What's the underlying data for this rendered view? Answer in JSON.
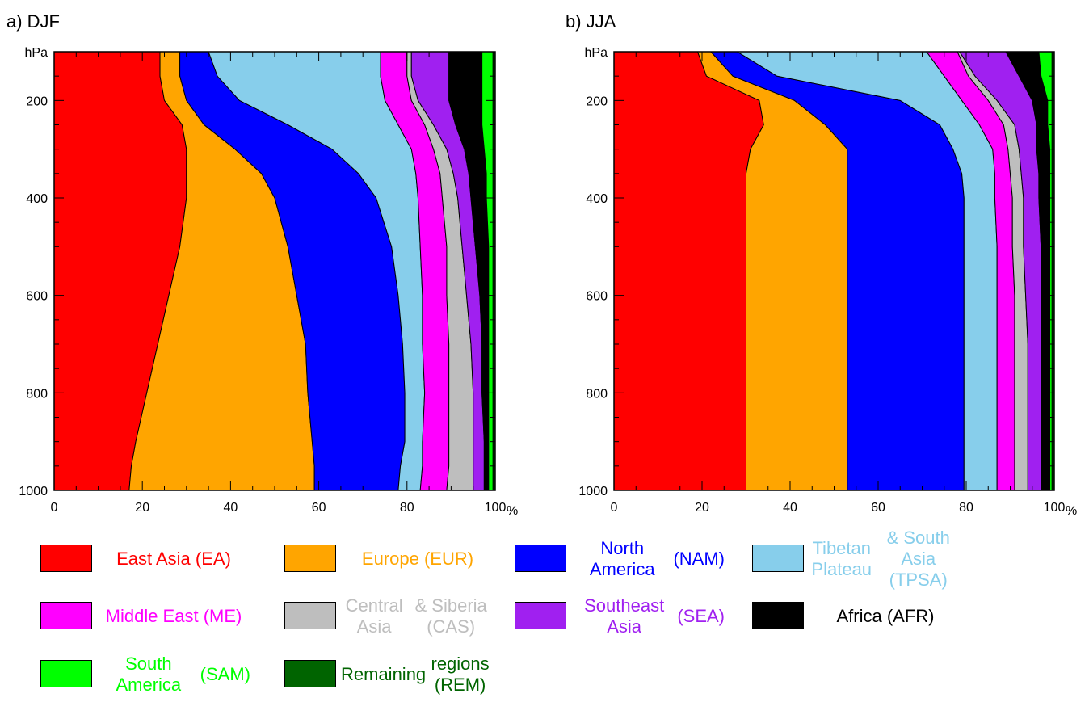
{
  "chart_data": [
    {
      "type": "area",
      "title": "a) DJF",
      "y_unit_label": "hPa",
      "x_unit_label": "%",
      "xlim": [
        0,
        100
      ],
      "ylim": [
        1000,
        100
      ],
      "x_ticks": [
        0,
        20,
        40,
        60,
        80,
        100
      ],
      "y_ticks": [
        200,
        400,
        600,
        800,
        1000
      ],
      "pressure": [
        100,
        150,
        200,
        250,
        300,
        350,
        400,
        500,
        600,
        700,
        800,
        900,
        950,
        1000
      ],
      "boundaries_cumulative_percent": [
        {
          "key": "EA",
          "values": [
            24,
            24,
            25,
            29,
            30,
            30,
            30,
            28.5,
            26,
            23.5,
            21,
            18.5,
            17.5,
            17
          ]
        },
        {
          "key": "EUR",
          "values": [
            28.5,
            28.5,
            30,
            34,
            41,
            47,
            50,
            53,
            55,
            57,
            57.5,
            58.5,
            59,
            59
          ]
        },
        {
          "key": "NAM",
          "values": [
            35,
            37,
            42,
            53,
            63,
            69,
            73,
            76.5,
            78,
            79,
            79.5,
            79.5,
            78.5,
            78
          ]
        },
        {
          "key": "TPSA",
          "values": [
            74,
            74,
            75,
            78,
            81,
            82,
            82.5,
            83,
            83.5,
            83.5,
            84,
            83.5,
            83.5,
            83
          ]
        },
        {
          "key": "ME",
          "values": [
            80,
            80,
            81,
            84,
            86,
            87.5,
            88,
            89,
            89,
            89.5,
            89.5,
            89.5,
            89.5,
            89
          ]
        },
        {
          "key": "CAS",
          "values": [
            81,
            81,
            82.5,
            86,
            89,
            90.5,
            91.5,
            92.5,
            93.5,
            94.5,
            95,
            95,
            95,
            95
          ]
        },
        {
          "key": "SEA",
          "values": [
            89.5,
            89.5,
            89.5,
            91,
            93,
            94,
            94.5,
            95.5,
            96.5,
            97,
            97,
            97.5,
            97.5,
            97.5
          ]
        },
        {
          "key": "AFR",
          "values": [
            97,
            97,
            97,
            97,
            97.5,
            98,
            98,
            98.5,
            98.5,
            98.5,
            98.5,
            98.5,
            98.5,
            98.5
          ]
        },
        {
          "key": "SAM",
          "values": [
            99.5,
            99.5,
            99.5,
            99.5,
            99.5,
            99.5,
            99.5,
            99.5,
            99.5,
            99.5,
            99.5,
            99.5,
            99.5,
            99.5
          ]
        },
        {
          "key": "REM",
          "values": [
            100,
            100,
            100,
            100,
            100,
            100,
            100,
            100,
            100,
            100,
            100,
            100,
            100,
            100
          ]
        }
      ]
    },
    {
      "type": "area",
      "title": "b) JJA",
      "y_unit_label": "hPa",
      "x_unit_label": "%",
      "xlim": [
        0,
        100
      ],
      "ylim": [
        1000,
        100
      ],
      "x_ticks": [
        0,
        20,
        40,
        60,
        80,
        100
      ],
      "y_ticks": [
        200,
        400,
        600,
        800,
        1000
      ],
      "pressure": [
        100,
        150,
        200,
        250,
        300,
        350,
        400,
        500,
        600,
        700,
        800,
        900,
        950,
        1000
      ],
      "boundaries_cumulative_percent": [
        {
          "key": "EA",
          "values": [
            19,
            21,
            33,
            34,
            31,
            30,
            30,
            30,
            30,
            30,
            30,
            30,
            30,
            30
          ]
        },
        {
          "key": "EUR",
          "values": [
            22,
            27,
            41,
            48,
            53,
            53,
            53,
            53,
            53,
            53,
            53,
            53,
            53,
            53
          ]
        },
        {
          "key": "NAM",
          "values": [
            28,
            37,
            65,
            74,
            77,
            79,
            79.5,
            79.5,
            79.5,
            79.5,
            79.5,
            79.5,
            79.5,
            79.5
          ]
        },
        {
          "key": "TPSA",
          "values": [
            71,
            75,
            79,
            83,
            86,
            86.5,
            86.5,
            87,
            87,
            87,
            87,
            87,
            87,
            87
          ]
        },
        {
          "key": "ME",
          "values": [
            78,
            80.5,
            85,
            88.5,
            89.5,
            90,
            90.5,
            90.5,
            91,
            91,
            91,
            91,
            91,
            91
          ]
        },
        {
          "key": "CAS",
          "values": [
            78.5,
            82,
            87,
            91,
            92,
            92.5,
            93,
            93,
            93.5,
            94,
            94,
            94,
            94,
            94
          ]
        },
        {
          "key": "SEA",
          "values": [
            89,
            92,
            95,
            96,
            96,
            96.5,
            96.5,
            97,
            97,
            97,
            97,
            97,
            97,
            97
          ]
        },
        {
          "key": "AFR",
          "values": [
            96.5,
            97,
            98.5,
            98.5,
            99,
            99,
            99,
            99,
            99,
            99,
            99,
            99,
            99,
            99
          ]
        },
        {
          "key": "SAM",
          "values": [
            99.5,
            99.5,
            99.5,
            99.5,
            99.5,
            99.5,
            99.5,
            99.5,
            99.5,
            99.5,
            99.5,
            99.5,
            99.5,
            99.5
          ]
        },
        {
          "key": "REM",
          "values": [
            100,
            100,
            100,
            100,
            100,
            100,
            100,
            100,
            100,
            100,
            100,
            100,
            100,
            100
          ]
        }
      ]
    }
  ],
  "legend": {
    "placement": "bottom",
    "items": [
      {
        "key": "EA",
        "lines": [
          "East Asia (EA)"
        ],
        "color": "#ff0000",
        "text_color": "#ff0000"
      },
      {
        "key": "EUR",
        "lines": [
          "Europe (EUR)"
        ],
        "color": "#ffa500",
        "text_color": "#ffa500"
      },
      {
        "key": "NAM",
        "lines": [
          "North America",
          "(NAM)"
        ],
        "color": "#0000ff",
        "text_color": "#0000ff"
      },
      {
        "key": "TPSA",
        "lines": [
          "Tibetan Plateau",
          "& South Asia (TPSA)"
        ],
        "color": "#87ceeb",
        "text_color": "#87ceeb"
      },
      {
        "key": "ME",
        "lines": [
          "Middle East (ME)"
        ],
        "color": "#ff00ff",
        "text_color": "#ff00ff"
      },
      {
        "key": "CAS",
        "lines": [
          "Central Asia",
          "& Siberia (CAS)"
        ],
        "color": "#bebebe",
        "text_color": "#bebebe"
      },
      {
        "key": "SEA",
        "lines": [
          "Southeast Asia",
          "(SEA)"
        ],
        "color": "#a020f0",
        "text_color": "#a020f0"
      },
      {
        "key": "AFR",
        "lines": [
          "Africa (AFR)"
        ],
        "color": "#000000",
        "text_color": "#000000"
      },
      {
        "key": "SAM",
        "lines": [
          "South America",
          "(SAM)"
        ],
        "color": "#00ff00",
        "text_color": "#00ff00"
      },
      {
        "key": "REM",
        "lines": [
          "Remaining",
          "regions (REM)"
        ],
        "color": "#006400",
        "text_color": "#006400"
      }
    ]
  }
}
